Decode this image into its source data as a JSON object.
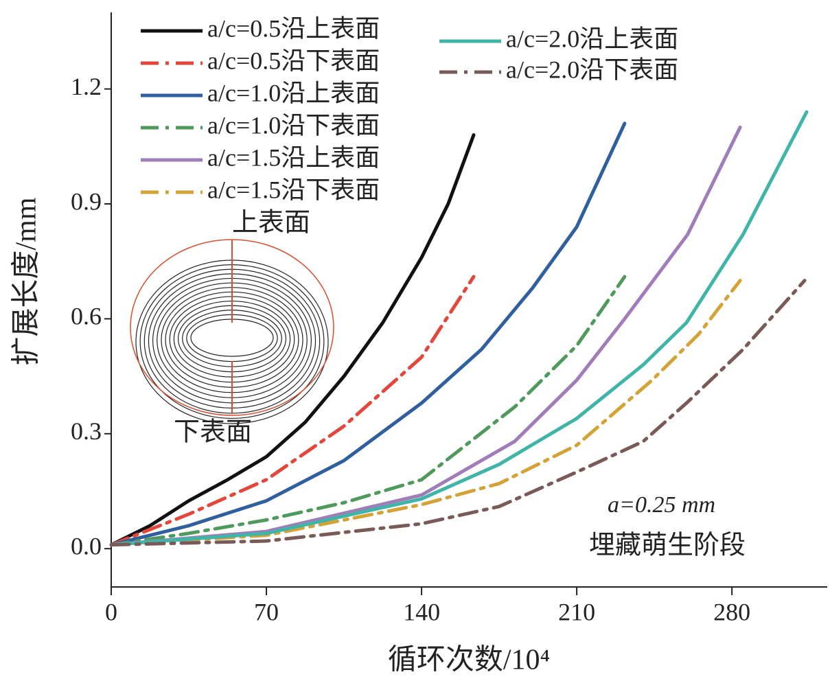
{
  "chart_data": {
    "type": "line",
    "xlabel": "循环次数/10⁴",
    "ylabel": "扩展长度/mm",
    "xlim": [
      0,
      323
    ],
    "ylim": [
      -0.1,
      1.4
    ],
    "xticks": [
      0,
      70,
      140,
      210,
      280
    ],
    "yticks": [
      {
        "value": 0,
        "label": "0.0"
      },
      0.3,
      0.6,
      0.9,
      1.2
    ],
    "annotations": [
      "a=0.25 mm",
      "埋藏萌生阶段",
      "上表面",
      "下表面"
    ],
    "series": [
      {
        "name": "a/c=0.5沿上表面",
        "color": "#111111",
        "linestyle": "solid",
        "x": [
          0,
          17.5,
          35,
          52.5,
          70,
          87.5,
          105,
          122.5,
          140,
          152,
          163.5
        ],
        "values": [
          0.01,
          0.06,
          0.125,
          0.18,
          0.24,
          0.33,
          0.45,
          0.59,
          0.76,
          0.9,
          1.08
        ]
      },
      {
        "name": "a/c=0.5沿下表面",
        "color": "#e5463c",
        "linestyle": "dash-dot",
        "x": [
          0,
          35,
          70,
          105,
          140,
          163.5
        ],
        "values": [
          0.01,
          0.09,
          0.18,
          0.32,
          0.5,
          0.71
        ]
      },
      {
        "name": "a/c=1.0沿上表面",
        "color": "#2f5f9e",
        "linestyle": "solid",
        "x": [
          0,
          35,
          70,
          105,
          140,
          167,
          190,
          210,
          231.6
        ],
        "values": [
          0.01,
          0.06,
          0.125,
          0.23,
          0.38,
          0.52,
          0.68,
          0.84,
          1.11
        ]
      },
      {
        "name": "a/c=1.0沿下表面",
        "color": "#4e9a5a",
        "linestyle": "dash-dot",
        "x": [
          0,
          35,
          70,
          105,
          140,
          182,
          210,
          231.6
        ],
        "values": [
          0.01,
          0.04,
          0.075,
          0.12,
          0.18,
          0.37,
          0.53,
          0.71
        ]
      },
      {
        "name": "a/c=1.5沿上表面",
        "color": "#a07cb8",
        "linestyle": "solid",
        "x": [
          0,
          70,
          140,
          182,
          210,
          231.6,
          260,
          283.7
        ],
        "values": [
          0.01,
          0.045,
          0.14,
          0.28,
          0.44,
          0.6,
          0.82,
          1.1
        ]
      },
      {
        "name": "a/c=1.5沿下表面",
        "color": "#d4a235",
        "linestyle": "dash-dot",
        "x": [
          0,
          70,
          140,
          175,
          210,
          244,
          265,
          283.7
        ],
        "values": [
          0.01,
          0.035,
          0.115,
          0.17,
          0.27,
          0.44,
          0.56,
          0.7
        ]
      },
      {
        "name": "a/c=2.0沿上表面",
        "color": "#3fb5a8",
        "linestyle": "solid",
        "x": [
          0,
          70,
          140,
          175,
          210,
          240,
          259.5,
          285,
          313.7
        ],
        "values": [
          0.01,
          0.04,
          0.13,
          0.22,
          0.34,
          0.48,
          0.59,
          0.82,
          1.14
        ]
      },
      {
        "name": "a/c=2.0沿下表面",
        "color": "#7a5a57",
        "linestyle": "dash-dot",
        "x": [
          0,
          70,
          140,
          175,
          210,
          240,
          259.5,
          285,
          312.8
        ],
        "values": [
          0.01,
          0.02,
          0.065,
          0.11,
          0.2,
          0.28,
          0.38,
          0.52,
          0.7
        ]
      }
    ]
  }
}
